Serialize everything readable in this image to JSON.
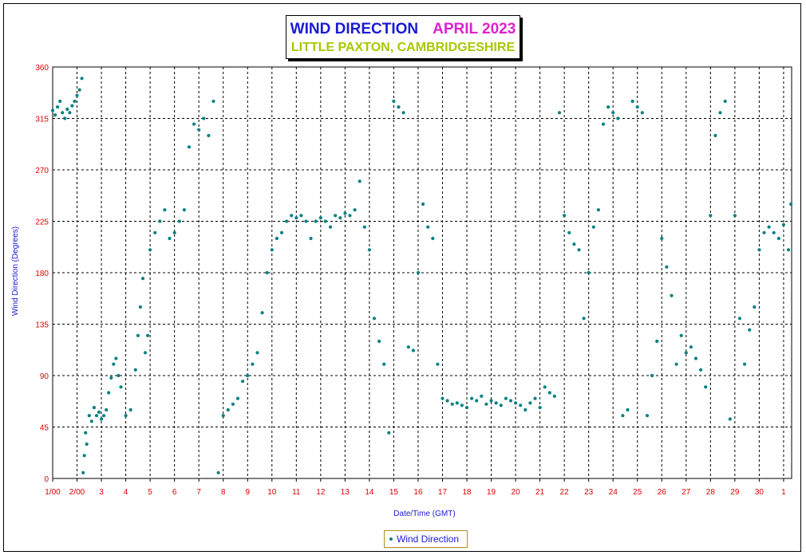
{
  "chart_data": {
    "type": "scatter",
    "title": "WIND DIRECTION",
    "title_period": "APRIL 2023",
    "subtitle": "LITTLE PAXTON, CAMBRIDGESHIRE",
    "xlabel": "Date/Time (GMT)",
    "ylabel": "Wind Direction (Degrees)",
    "ylim": [
      0,
      360
    ],
    "xlim": [
      1,
      31.33
    ],
    "ytick_values": [
      0,
      45,
      90,
      135,
      180,
      225,
      270,
      315,
      360
    ],
    "ytick_labels": [
      "0",
      "45",
      "90",
      "135",
      "180",
      "225",
      "270",
      "315",
      "360"
    ],
    "xtick_values": [
      1,
      2,
      3,
      4,
      5,
      6,
      7,
      8,
      9,
      10,
      11,
      12,
      13,
      14,
      15,
      16,
      17,
      18,
      19,
      20,
      21,
      22,
      23,
      24,
      25,
      26,
      27,
      28,
      29,
      30,
      31
    ],
    "xtick_labels": [
      "1/00",
      "2/00",
      "3",
      "4",
      "5",
      "6",
      "7",
      "8",
      "9",
      "10",
      "11",
      "12",
      "13",
      "14",
      "15",
      "16",
      "17",
      "18",
      "19",
      "20",
      "21",
      "22",
      "23",
      "24",
      "25",
      "26",
      "27",
      "28",
      "29",
      "30",
      "1"
    ],
    "grid": true,
    "legend": "bottom-center",
    "colors": {
      "series": "#008080",
      "tick_labels": "#e00000",
      "axis_labels": "#1a1ad4",
      "title": "#1a1ad4",
      "title_period": "#e020d0",
      "subtitle": "#a8c800"
    },
    "series": [
      {
        "name": "Wind Direction",
        "points": [
          [
            1.0,
            322
          ],
          [
            1.1,
            318
          ],
          [
            1.2,
            325
          ],
          [
            1.3,
            330
          ],
          [
            1.4,
            320
          ],
          [
            1.5,
            315
          ],
          [
            1.6,
            323
          ],
          [
            1.7,
            320
          ],
          [
            1.8,
            326
          ],
          [
            1.9,
            330
          ],
          [
            2.0,
            335
          ],
          [
            2.1,
            340
          ],
          [
            2.2,
            350
          ],
          [
            2.25,
            5
          ],
          [
            2.3,
            20
          ],
          [
            2.35,
            40
          ],
          [
            2.4,
            30
          ],
          [
            2.5,
            55
          ],
          [
            2.6,
            50
          ],
          [
            2.7,
            62
          ],
          [
            2.8,
            55
          ],
          [
            2.9,
            58
          ],
          [
            3.0,
            52
          ],
          [
            3.1,
            55
          ],
          [
            3.2,
            60
          ],
          [
            3.3,
            75
          ],
          [
            3.4,
            88
          ],
          [
            3.5,
            100
          ],
          [
            3.6,
            105
          ],
          [
            3.7,
            90
          ],
          [
            3.8,
            80
          ],
          [
            4.0,
            55
          ],
          [
            4.2,
            60
          ],
          [
            4.4,
            95
          ],
          [
            4.5,
            125
          ],
          [
            4.6,
            150
          ],
          [
            4.7,
            175
          ],
          [
            4.8,
            110
          ],
          [
            4.9,
            125
          ],
          [
            5.0,
            200
          ],
          [
            5.2,
            215
          ],
          [
            5.4,
            225
          ],
          [
            5.6,
            235
          ],
          [
            5.8,
            210
          ],
          [
            6.0,
            215
          ],
          [
            6.2,
            225
          ],
          [
            6.4,
            235
          ],
          [
            6.6,
            290
          ],
          [
            6.8,
            310
          ],
          [
            7.0,
            305
          ],
          [
            7.2,
            315
          ],
          [
            7.4,
            300
          ],
          [
            7.6,
            330
          ],
          [
            7.8,
            5
          ],
          [
            8.0,
            55
          ],
          [
            8.2,
            60
          ],
          [
            8.4,
            65
          ],
          [
            8.6,
            70
          ],
          [
            8.8,
            85
          ],
          [
            9.0,
            90
          ],
          [
            9.2,
            100
          ],
          [
            9.4,
            110
          ],
          [
            9.6,
            145
          ],
          [
            9.8,
            180
          ],
          [
            10.0,
            200
          ],
          [
            10.2,
            210
          ],
          [
            10.4,
            215
          ],
          [
            10.6,
            225
          ],
          [
            10.8,
            230
          ],
          [
            11.0,
            228
          ],
          [
            11.2,
            230
          ],
          [
            11.4,
            225
          ],
          [
            11.6,
            210
          ],
          [
            11.8,
            225
          ],
          [
            12.0,
            228
          ],
          [
            12.2,
            225
          ],
          [
            12.4,
            220
          ],
          [
            12.6,
            230
          ],
          [
            12.8,
            228
          ],
          [
            13.0,
            232
          ],
          [
            13.2,
            230
          ],
          [
            13.4,
            235
          ],
          [
            13.6,
            260
          ],
          [
            13.8,
            220
          ],
          [
            14.0,
            200
          ],
          [
            14.2,
            140
          ],
          [
            14.4,
            120
          ],
          [
            14.6,
            100
          ],
          [
            14.8,
            40
          ],
          [
            15.0,
            330
          ],
          [
            15.2,
            325
          ],
          [
            15.4,
            320
          ],
          [
            15.6,
            115
          ],
          [
            15.8,
            112
          ],
          [
            16.0,
            180
          ],
          [
            16.2,
            240
          ],
          [
            16.4,
            220
          ],
          [
            16.6,
            210
          ],
          [
            16.8,
            100
          ],
          [
            17.0,
            70
          ],
          [
            17.2,
            68
          ],
          [
            17.4,
            65
          ],
          [
            17.6,
            66
          ],
          [
            17.8,
            64
          ],
          [
            18.0,
            62
          ],
          [
            18.2,
            70
          ],
          [
            18.4,
            68
          ],
          [
            18.6,
            72
          ],
          [
            18.8,
            65
          ],
          [
            19.0,
            68
          ],
          [
            19.2,
            66
          ],
          [
            19.4,
            64
          ],
          [
            19.6,
            70
          ],
          [
            19.8,
            68
          ],
          [
            20.0,
            66
          ],
          [
            20.2,
            64
          ],
          [
            20.4,
            60
          ],
          [
            20.6,
            66
          ],
          [
            20.8,
            70
          ],
          [
            21.0,
            62
          ],
          [
            21.2,
            80
          ],
          [
            21.4,
            75
          ],
          [
            21.6,
            72
          ],
          [
            21.8,
            320
          ],
          [
            22.0,
            230
          ],
          [
            22.2,
            215
          ],
          [
            22.4,
            205
          ],
          [
            22.6,
            200
          ],
          [
            22.8,
            140
          ],
          [
            23.0,
            180
          ],
          [
            23.2,
            220
          ],
          [
            23.4,
            235
          ],
          [
            23.6,
            310
          ],
          [
            23.8,
            325
          ],
          [
            24.0,
            320
          ],
          [
            24.2,
            315
          ],
          [
            24.4,
            55
          ],
          [
            24.6,
            60
          ],
          [
            24.8,
            330
          ],
          [
            25.0,
            325
          ],
          [
            25.2,
            320
          ],
          [
            25.4,
            55
          ],
          [
            25.6,
            90
          ],
          [
            25.8,
            120
          ],
          [
            26.0,
            210
          ],
          [
            26.2,
            185
          ],
          [
            26.4,
            160
          ],
          [
            26.6,
            100
          ],
          [
            26.8,
            125
          ],
          [
            27.0,
            110
          ],
          [
            27.2,
            115
          ],
          [
            27.4,
            105
          ],
          [
            27.6,
            95
          ],
          [
            27.8,
            80
          ],
          [
            28.0,
            230
          ],
          [
            28.2,
            300
          ],
          [
            28.4,
            320
          ],
          [
            28.6,
            330
          ],
          [
            28.8,
            52
          ],
          [
            29.0,
            230
          ],
          [
            29.2,
            140
          ],
          [
            29.4,
            100
          ],
          [
            29.6,
            130
          ],
          [
            29.8,
            150
          ],
          [
            30.0,
            200
          ],
          [
            30.2,
            215
          ],
          [
            30.4,
            220
          ],
          [
            30.6,
            215
          ],
          [
            30.8,
            210
          ],
          [
            31.0,
            222
          ],
          [
            31.2,
            200
          ],
          [
            31.3,
            240
          ]
        ]
      }
    ]
  }
}
